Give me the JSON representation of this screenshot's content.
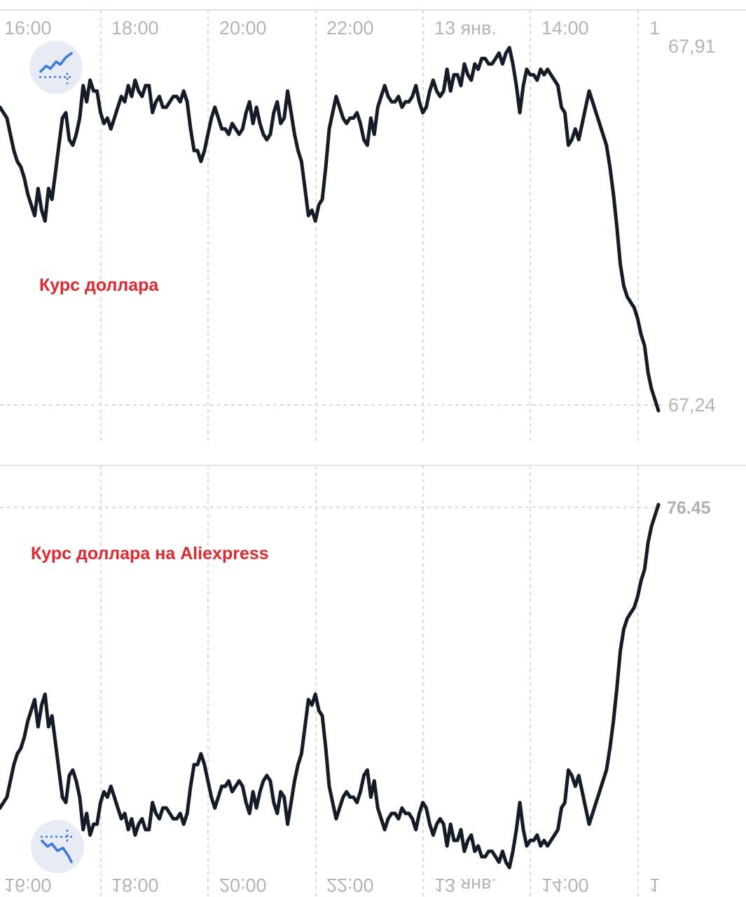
{
  "chart_data": [
    {
      "type": "line",
      "title": "",
      "caption": "Курс доллара",
      "x_ticks": [
        "16:00",
        "18:00",
        "20:00",
        "22:00",
        "13 янв.",
        "14:00",
        "1"
      ],
      "y_ticks": [
        "67,91",
        "67,24"
      ],
      "ylim": [
        67.24,
        67.91
      ],
      "grid": true,
      "line_color": "#141c28",
      "icon": "chart-trend-up-icon",
      "series": [
        {
          "values": [
            67.8,
            67.79,
            67.78,
            67.75,
            67.72,
            67.7,
            67.69,
            67.67,
            67.64,
            67.62,
            67.6,
            67.65,
            67.61,
            67.59,
            67.65,
            67.63,
            67.68,
            67.73,
            67.78,
            67.79,
            67.74,
            67.73,
            67.75,
            67.78,
            67.84,
            67.81,
            67.85,
            67.83,
            67.83,
            67.79,
            67.77,
            67.78,
            67.76,
            67.78,
            67.8,
            67.82,
            67.81,
            67.84,
            67.82,
            67.85,
            67.83,
            67.82,
            67.84,
            67.84,
            67.79,
            67.81,
            67.82,
            67.8,
            67.8,
            67.81,
            67.82,
            67.82,
            67.81,
            67.83,
            67.81,
            67.76,
            67.72,
            67.72,
            67.7,
            67.72,
            67.75,
            67.78,
            67.8,
            67.78,
            67.76,
            67.76,
            67.75,
            67.77,
            67.76,
            67.75,
            67.76,
            67.79,
            67.81,
            67.77,
            67.8,
            67.77,
            67.75,
            67.74,
            67.75,
            67.79,
            67.81,
            67.77,
            67.78,
            67.83,
            67.79,
            67.75,
            67.72,
            67.7,
            67.65,
            67.6,
            67.61,
            67.59,
            67.62,
            67.63,
            67.69,
            67.76,
            67.79,
            67.82,
            67.8,
            67.78,
            67.77,
            67.78,
            67.78,
            67.79,
            67.77,
            67.74,
            67.73,
            67.78,
            67.75,
            67.8,
            67.82,
            67.84,
            67.82,
            67.81,
            67.81,
            67.82,
            67.8,
            67.81,
            67.81,
            67.82,
            67.84,
            67.81,
            67.79,
            67.8,
            67.83,
            67.85,
            67.83,
            67.82,
            67.83,
            67.87,
            67.83,
            67.86,
            67.86,
            67.84,
            67.88,
            67.86,
            67.85,
            67.88,
            67.87,
            67.89,
            67.89,
            67.88,
            67.88,
            67.89,
            67.9,
            67.88,
            67.9,
            67.91,
            67.88,
            67.84,
            67.79,
            67.84,
            67.87,
            67.86,
            67.86,
            67.85,
            67.87,
            67.86,
            67.87,
            67.86,
            67.85,
            67.84,
            67.8,
            67.79,
            67.73,
            67.74,
            67.76,
            67.74,
            67.77,
            67.8,
            67.83,
            67.81,
            67.79,
            67.77,
            67.75,
            67.73,
            67.69,
            67.64,
            67.58,
            67.51,
            67.47,
            67.45,
            67.44,
            67.43,
            67.41,
            67.38,
            67.36,
            67.31,
            67.28,
            67.26,
            67.24
          ]
        }
      ]
    },
    {
      "type": "line",
      "title": "",
      "caption": "Курс доллара на Aliexpress",
      "x_ticks": [
        "16:00",
        "18:00",
        "20:00",
        "22:00",
        "13 янв.",
        "14:00",
        "1"
      ],
      "x_ticks_mirrored": true,
      "y_ticks": [
        "76.45"
      ],
      "ylim": [
        null,
        76.45
      ],
      "grid": true,
      "line_color": "#141c28",
      "icon": "chart-trend-down-icon"
    }
  ]
}
